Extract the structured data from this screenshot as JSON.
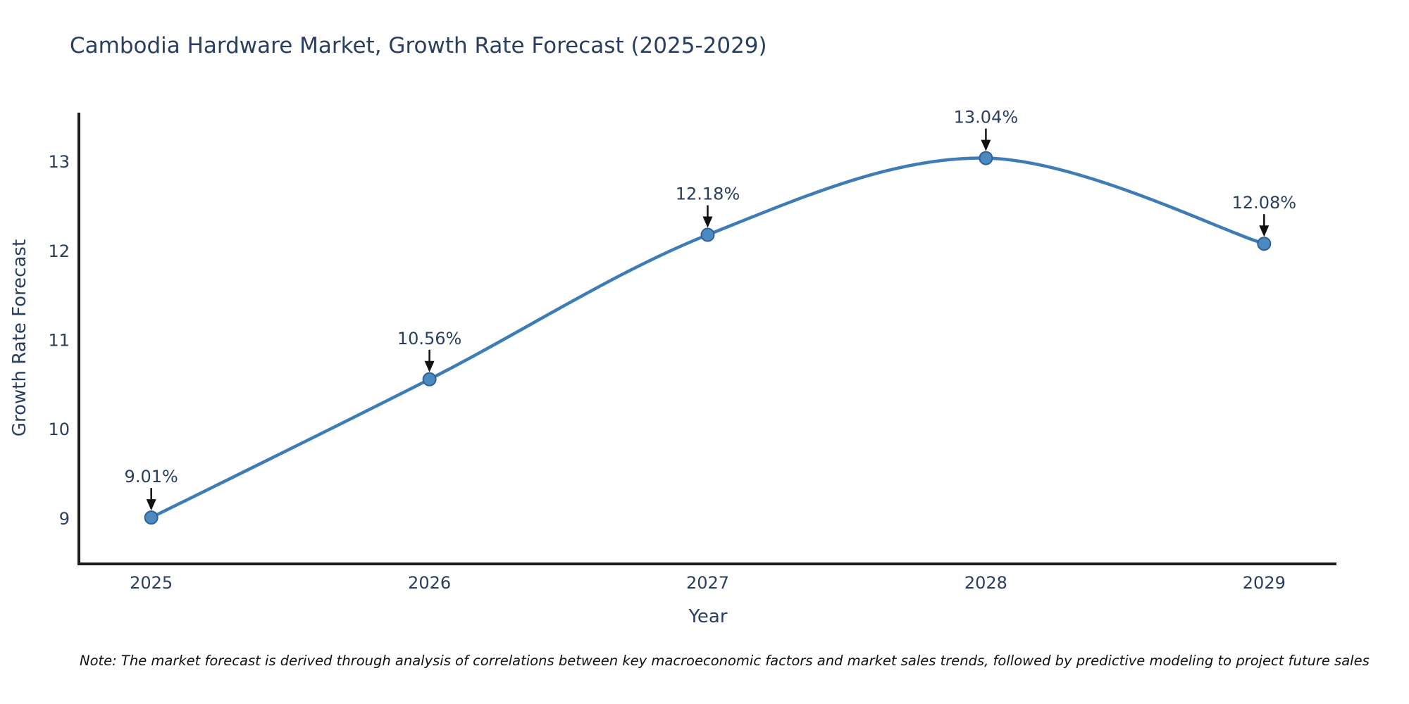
{
  "title": "Cambodia Hardware Market, Growth Rate Forecast (2025-2029)",
  "note": "Note: The market forecast is derived through analysis of correlations between key macroeconomic factors and market sales trends, followed by predictive modeling to project future sales",
  "chart_data": {
    "type": "line",
    "title": "Cambodia Hardware Market, Growth Rate Forecast (2025-2029)",
    "xlabel": "Year",
    "ylabel": "Growth Rate Forecast",
    "x": [
      2025,
      2026,
      2027,
      2028,
      2029
    ],
    "y": [
      9.01,
      10.56,
      12.18,
      13.04,
      12.08
    ],
    "point_labels": [
      "9.01%",
      "10.56%",
      "12.18%",
      "13.04%",
      "12.08%"
    ],
    "xticks": [
      "2025",
      "2026",
      "2027",
      "2028",
      "2029"
    ],
    "yticks": [
      "9",
      "10",
      "11",
      "12",
      "13"
    ],
    "ytick_values": [
      9,
      10,
      11,
      12,
      13
    ],
    "xlim": [
      2024.74,
      2029.26
    ],
    "ylim": [
      8.49,
      13.55
    ],
    "line_shape": "spline",
    "grid": false,
    "legend": "none",
    "colors": {
      "line": "#3E7CB6",
      "marker": "#4A8AC0",
      "marker_edge": "#2E6294",
      "axis": "#1b1b1b",
      "tick_text": "#2a3f5f",
      "annotation_text": "#2a3f5f",
      "arrow": "#111111",
      "note_text": "#111111",
      "background": "#ffffff"
    }
  }
}
